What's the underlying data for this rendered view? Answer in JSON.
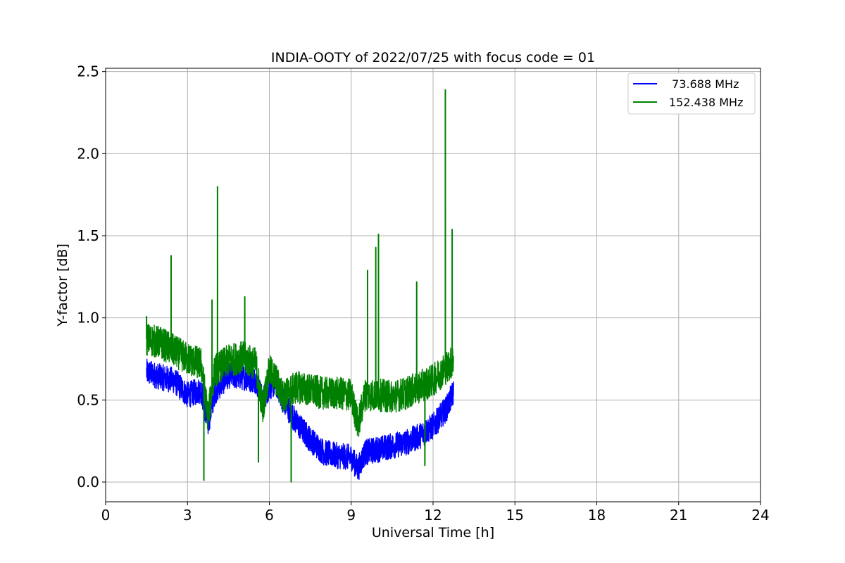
{
  "chart_data": {
    "type": "line",
    "title": "INDIA-OOTY of 2022/07/25 with focus code = 01",
    "xlabel": "Universal Time [h]",
    "ylabel": "Y-factor [dB]",
    "xlim": [
      0,
      24
    ],
    "ylim": [
      -0.12,
      2.52
    ],
    "xticks": [
      "0",
      "3",
      "6",
      "9",
      "12",
      "15",
      "18",
      "21",
      "24"
    ],
    "yticks": [
      "0.0",
      "0.5",
      "1.0",
      "1.5",
      "2.0",
      "2.5"
    ],
    "grid": true,
    "legend_position": "top-right",
    "series": [
      {
        "name": "  73.688 MHz",
        "color": "#0000ff",
        "x": [
          1.5,
          2.0,
          2.5,
          3.0,
          3.5,
          3.75,
          4.0,
          4.5,
          5.0,
          5.5,
          5.75,
          6.0,
          6.25,
          6.5,
          7.0,
          7.5,
          8.0,
          8.5,
          9.0,
          9.25,
          9.5,
          10.0,
          10.5,
          11.0,
          11.5,
          12.0,
          12.5,
          12.75
        ],
        "y": [
          0.67,
          0.64,
          0.62,
          0.53,
          0.56,
          0.35,
          0.55,
          0.65,
          0.64,
          0.62,
          0.5,
          0.58,
          0.6,
          0.5,
          0.36,
          0.26,
          0.18,
          0.16,
          0.15,
          0.08,
          0.18,
          0.2,
          0.22,
          0.24,
          0.28,
          0.34,
          0.45,
          0.55
        ],
        "noise_amplitude": 0.08
      },
      {
        "name": "152.438 MHz",
        "color": "#008000",
        "x": [
          1.5,
          2.0,
          2.5,
          3.0,
          3.5,
          3.75,
          4.0,
          4.5,
          5.0,
          5.5,
          5.75,
          6.0,
          6.25,
          6.5,
          7.0,
          7.5,
          8.0,
          8.5,
          9.0,
          9.25,
          9.5,
          10.0,
          10.5,
          11.0,
          11.5,
          12.0,
          12.5,
          12.75
        ],
        "y": [
          0.87,
          0.85,
          0.8,
          0.75,
          0.72,
          0.4,
          0.68,
          0.74,
          0.76,
          0.72,
          0.45,
          0.68,
          0.62,
          0.52,
          0.58,
          0.56,
          0.54,
          0.54,
          0.53,
          0.35,
          0.53,
          0.53,
          0.52,
          0.54,
          0.58,
          0.62,
          0.7,
          0.74
        ],
        "noise_amplitude": 0.1,
        "spikes": [
          [
            1.5,
            1.01
          ],
          [
            2.4,
            1.38
          ],
          [
            3.9,
            1.11
          ],
          [
            4.1,
            1.8
          ],
          [
            5.1,
            1.13
          ],
          [
            9.6,
            1.29
          ],
          [
            9.9,
            1.43
          ],
          [
            10.0,
            1.51
          ],
          [
            11.4,
            1.22
          ],
          [
            12.45,
            2.39
          ],
          [
            12.7,
            1.54
          ],
          [
            3.6,
            0.01
          ],
          [
            6.8,
            0.0
          ],
          [
            5.6,
            0.12
          ],
          [
            11.7,
            0.1
          ]
        ]
      }
    ]
  }
}
